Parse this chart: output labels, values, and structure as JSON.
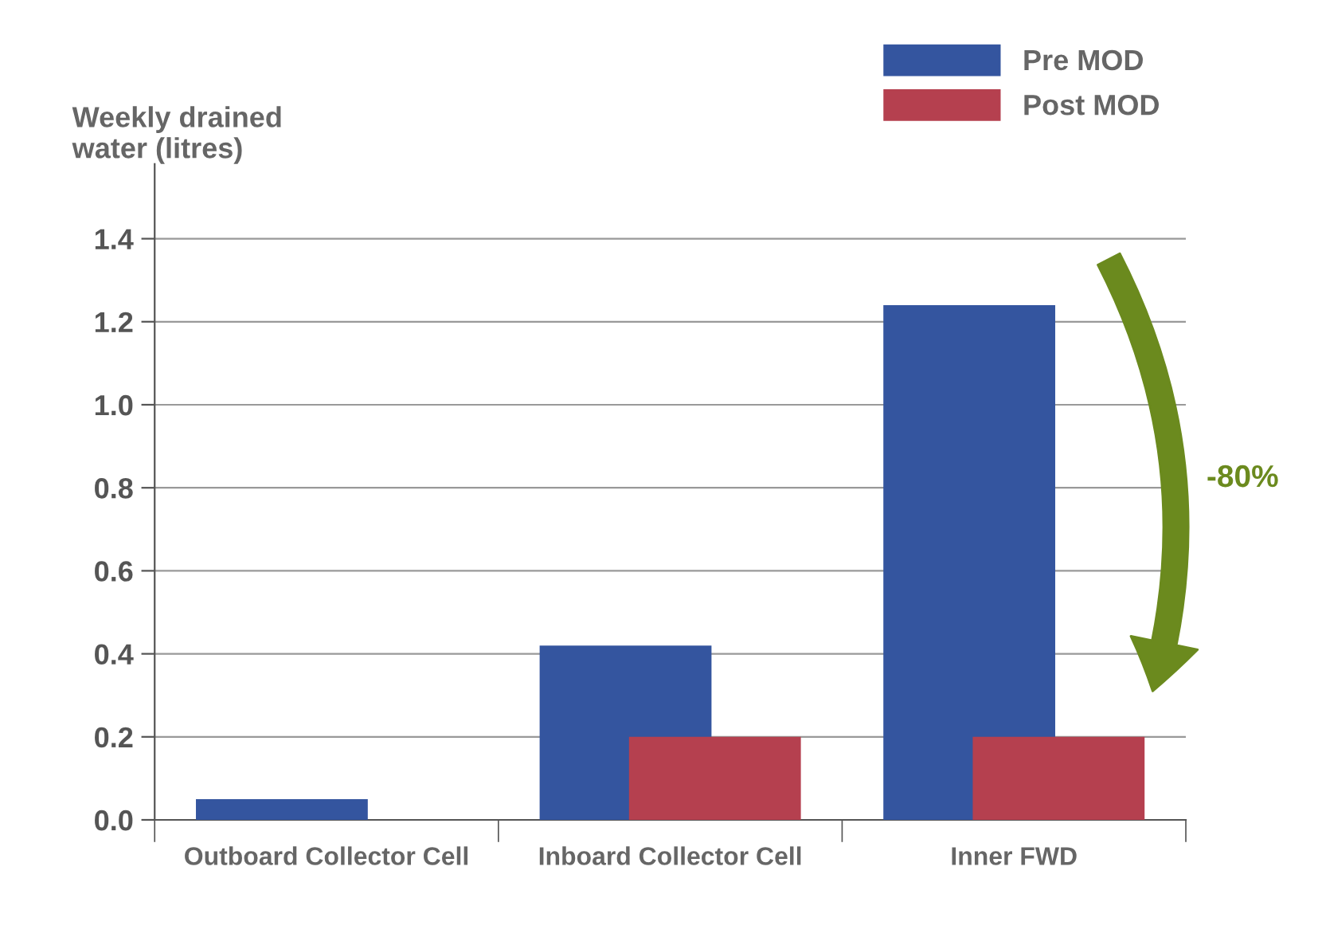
{
  "chart_data": {
    "type": "bar",
    "ylabel": "Weekly drained\nwater (litres)",
    "categories": [
      "Outboard Collector Cell",
      "Inboard Collector Cell",
      "Inner FWD"
    ],
    "series": [
      {
        "name": "Pre MOD",
        "color": "#34559f",
        "values": [
          0.05,
          0.42,
          1.24
        ]
      },
      {
        "name": "Post MOD",
        "color": "#b5404f",
        "values": [
          null,
          0.2,
          0.2
        ]
      }
    ],
    "ylim": [
      0,
      1.58
    ],
    "yticks": [
      {
        "value": 0,
        "label": "0.0"
      },
      0.2,
      0.4,
      0.6,
      0.8,
      {
        "value": 1,
        "label": "1.0"
      },
      1.2,
      1.4
    ],
    "grid": "y",
    "legend": "top right",
    "annotations": [
      "-80%"
    ]
  }
}
